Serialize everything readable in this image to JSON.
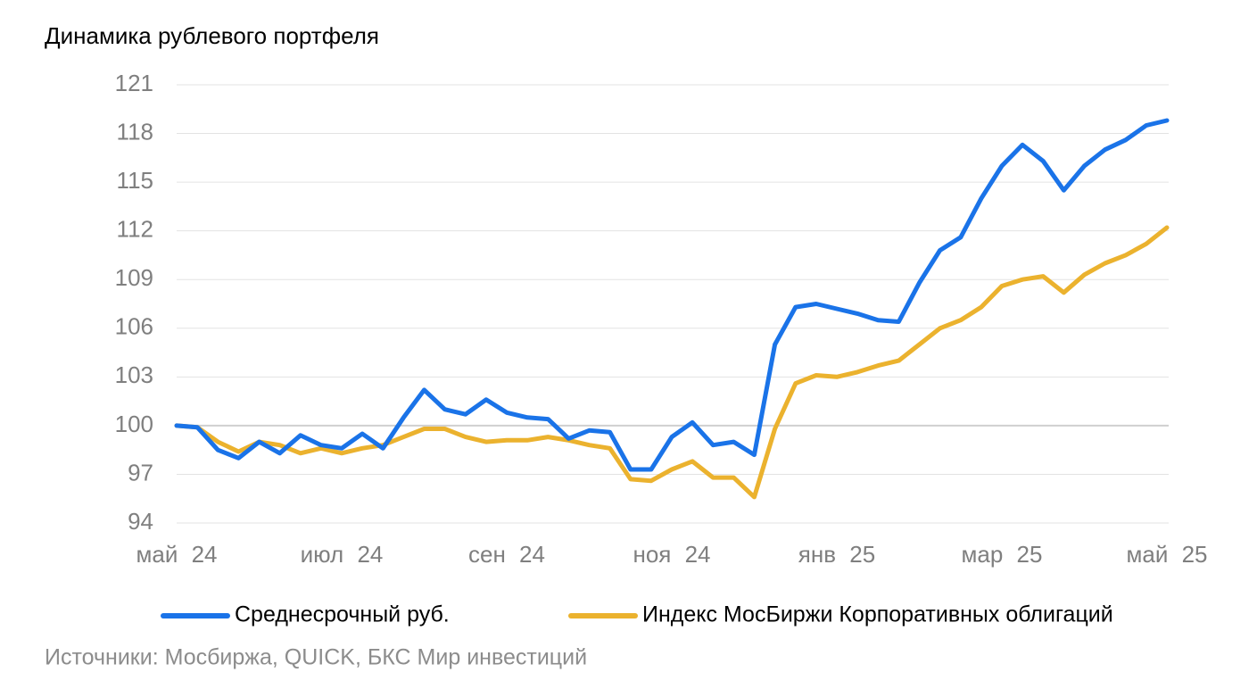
{
  "chart_data": {
    "type": "line",
    "title": "Динамика рублевого портфеля",
    "source": "Источники: Мосбиржа, QUICK, БКС Мир инвестиций",
    "categories": [
      "май 24",
      null,
      null,
      null,
      null,
      null,
      null,
      null,
      "июл 24",
      null,
      null,
      null,
      null,
      null,
      null,
      null,
      "сен 24",
      null,
      null,
      null,
      null,
      null,
      null,
      null,
      "ноя 24",
      null,
      null,
      null,
      null,
      null,
      null,
      null,
      "янв 25",
      null,
      null,
      null,
      null,
      null,
      null,
      null,
      "мар 25",
      null,
      null,
      null,
      null,
      null,
      null,
      null,
      "май 25"
    ],
    "series": [
      {
        "name": "Среднесрочный руб.",
        "color": "#1a73e8",
        "values": [
          100,
          99.9,
          98.5,
          98.0,
          99.0,
          98.3,
          99.4,
          98.8,
          98.6,
          99.5,
          98.6,
          100.5,
          102.2,
          101.0,
          100.7,
          101.6,
          100.8,
          100.5,
          100.4,
          99.2,
          99.7,
          99.6,
          97.3,
          97.3,
          99.3,
          100.2,
          98.8,
          99.0,
          98.2,
          105.0,
          107.3,
          107.5,
          107.2,
          106.9,
          106.5,
          106.4,
          108.8,
          110.8,
          111.6,
          114.0,
          116.0,
          117.3,
          116.3,
          114.5,
          116.0,
          117.0,
          117.6,
          118.5,
          118.8
        ]
      },
      {
        "name": "Индекс МосБиржи Корпоративных облигаций",
        "color": "#ebb22e",
        "values": [
          100,
          99.9,
          99.0,
          98.4,
          99.0,
          98.8,
          98.3,
          98.6,
          98.3,
          98.6,
          98.8,
          99.3,
          99.8,
          99.8,
          99.3,
          99.0,
          99.1,
          99.1,
          99.3,
          99.1,
          98.8,
          98.6,
          96.7,
          96.6,
          97.3,
          97.8,
          96.8,
          96.8,
          95.6,
          99.8,
          102.6,
          103.1,
          103.0,
          103.3,
          103.7,
          104.0,
          105.0,
          106.0,
          106.5,
          107.3,
          108.6,
          109.0,
          109.2,
          108.2,
          109.3,
          110.0,
          110.5,
          111.2,
          112.2
        ]
      }
    ],
    "ylim": [
      94,
      121
    ],
    "yticks": [
      94,
      97,
      100,
      103,
      106,
      109,
      112,
      115,
      118,
      121
    ],
    "grid": true
  }
}
